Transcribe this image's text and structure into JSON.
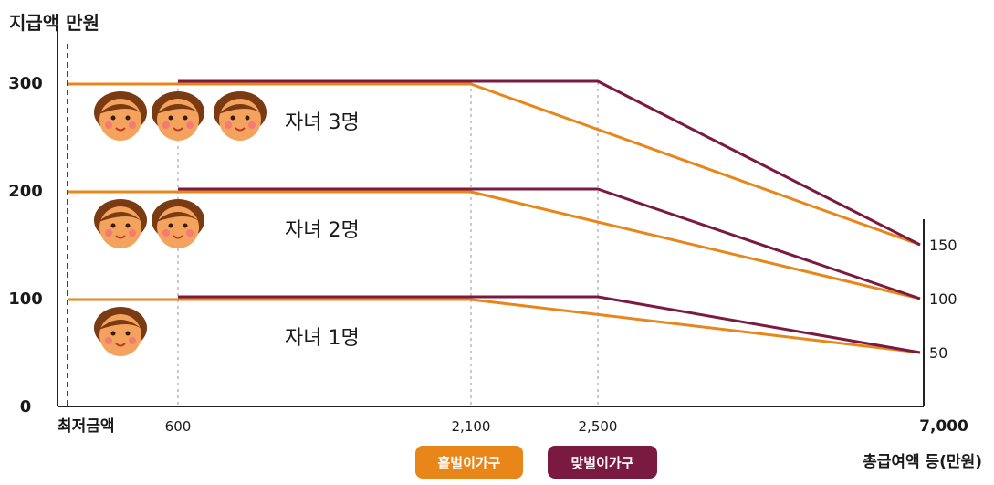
{
  "chart_data": {
    "type": "line",
    "title": "지급액 만원",
    "xlabel": "총급여액 등(만원)",
    "x_tick_labels": [
      {
        "x": 0,
        "label": "최저금액"
      },
      {
        "x": 600,
        "label": "600"
      },
      {
        "x": 2100,
        "label": "2,100"
      },
      {
        "x": 2500,
        "label": "2,500"
      },
      {
        "x": 7000,
        "label": "7,000"
      }
    ],
    "y_ticks": [
      0,
      100,
      200,
      300
    ],
    "y_right_labels": [
      "150",
      "100",
      "50"
    ],
    "xlim": [
      0,
      7000
    ],
    "ylim": [
      0,
      340
    ],
    "grid": "vertical dotted lines at 600, 2100, 2500",
    "legend": "bottom-center",
    "groups": [
      {
        "label": "자녀 3명",
        "faces": 3,
        "series": [
          {
            "name": "홑벌이가구",
            "color": "#E8861A",
            "points": [
              [
                0,
                300
              ],
              [
                2100,
                300
              ],
              [
                7000,
                150
              ]
            ]
          },
          {
            "name": "맞벌이가구",
            "color": "#7A1A40",
            "points": [
              [
                600,
                300
              ],
              [
                2500,
                300
              ],
              [
                7000,
                150
              ]
            ]
          }
        ]
      },
      {
        "label": "자녀 2명",
        "faces": 2,
        "series": [
          {
            "name": "홑벌이가구",
            "color": "#E8861A",
            "points": [
              [
                0,
                200
              ],
              [
                2100,
                200
              ],
              [
                7000,
                100
              ]
            ]
          },
          {
            "name": "맞벌이가구",
            "color": "#7A1A40",
            "points": [
              [
                600,
                200
              ],
              [
                2500,
                200
              ],
              [
                7000,
                100
              ]
            ]
          }
        ]
      },
      {
        "label": "자녀 1명",
        "faces": 1,
        "series": [
          {
            "name": "홑벌이가구",
            "color": "#E8861A",
            "points": [
              [
                0,
                100
              ],
              [
                2100,
                100
              ],
              [
                7000,
                50
              ]
            ]
          },
          {
            "name": "맞벌이가구",
            "color": "#7A1A40",
            "points": [
              [
                600,
                100
              ],
              [
                2500,
                100
              ],
              [
                7000,
                50
              ]
            ]
          }
        ]
      }
    ],
    "legend_items": [
      {
        "name": "홑벌이가구",
        "color": "#E8861A"
      },
      {
        "name": "맞벌이가구",
        "color": "#7A1A40"
      }
    ]
  }
}
